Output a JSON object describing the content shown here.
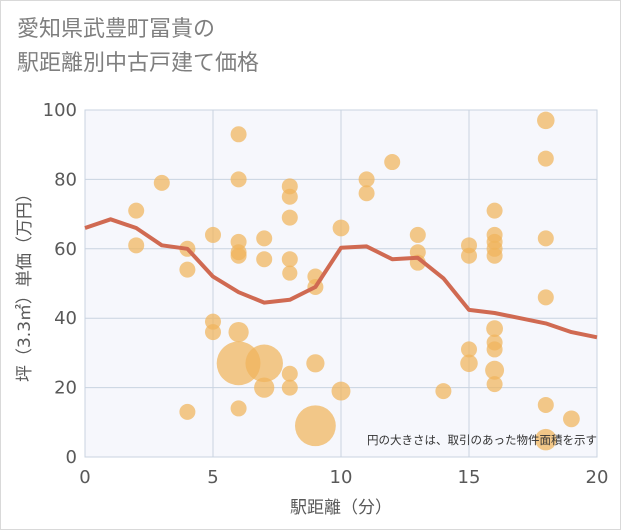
{
  "chart_data": {
    "type": "scatter",
    "title": "愛知県武豊町冨貴の\n駅距離別中古戸建て価格",
    "xlabel": "駅距離（分）",
    "ylabel": "坪（3.3㎡）単価（万円）",
    "xlim": [
      0,
      20
    ],
    "ylim": [
      0,
      100
    ],
    "xticks": [
      0,
      5,
      10,
      15,
      20
    ],
    "yticks": [
      0,
      20,
      40,
      60,
      80,
      100
    ],
    "grid": true,
    "annotation": "円の大きさは、取引のあった物件面積を示す",
    "colors": {
      "bubble": "#f0b45c",
      "line": "#d06a52",
      "plot_bg": "#f6f7fc",
      "grid": "#c9d3e0",
      "axis": "#595959"
    },
    "bubbles": [
      {
        "x": 2,
        "y": 71,
        "s": 1
      },
      {
        "x": 2,
        "y": 61,
        "s": 1
      },
      {
        "x": 3,
        "y": 79,
        "s": 1
      },
      {
        "x": 4,
        "y": 60,
        "s": 1
      },
      {
        "x": 4,
        "y": 54,
        "s": 1
      },
      {
        "x": 4,
        "y": 13,
        "s": 1
      },
      {
        "x": 5,
        "y": 64,
        "s": 1
      },
      {
        "x": 5,
        "y": 39,
        "s": 1
      },
      {
        "x": 5,
        "y": 36,
        "s": 1
      },
      {
        "x": 6,
        "y": 93,
        "s": 1
      },
      {
        "x": 6,
        "y": 80,
        "s": 1
      },
      {
        "x": 6,
        "y": 62,
        "s": 1
      },
      {
        "x": 6,
        "y": 59,
        "s": 1
      },
      {
        "x": 6,
        "y": 58,
        "s": 1
      },
      {
        "x": 6,
        "y": 36,
        "s": 1.6
      },
      {
        "x": 6,
        "y": 27,
        "s": 7.5
      },
      {
        "x": 6,
        "y": 14,
        "s": 1
      },
      {
        "x": 7,
        "y": 63,
        "s": 1
      },
      {
        "x": 7,
        "y": 57,
        "s": 1
      },
      {
        "x": 7,
        "y": 27,
        "s": 5.5
      },
      {
        "x": 7,
        "y": 20,
        "s": 1.6
      },
      {
        "x": 8,
        "y": 78,
        "s": 1
      },
      {
        "x": 8,
        "y": 75,
        "s": 1
      },
      {
        "x": 8,
        "y": 69,
        "s": 1
      },
      {
        "x": 8,
        "y": 57,
        "s": 1
      },
      {
        "x": 8,
        "y": 53,
        "s": 0.9
      },
      {
        "x": 8,
        "y": 24,
        "s": 1
      },
      {
        "x": 8,
        "y": 20,
        "s": 1
      },
      {
        "x": 9,
        "y": 52,
        "s": 1
      },
      {
        "x": 9,
        "y": 49,
        "s": 1
      },
      {
        "x": 9,
        "y": 27,
        "s": 1.3
      },
      {
        "x": 9,
        "y": 9,
        "s": 6.5
      },
      {
        "x": 10,
        "y": 66,
        "s": 1.1
      },
      {
        "x": 10,
        "y": 19,
        "s": 1.4
      },
      {
        "x": 11,
        "y": 80,
        "s": 1
      },
      {
        "x": 11,
        "y": 76,
        "s": 1
      },
      {
        "x": 12,
        "y": 85,
        "s": 1
      },
      {
        "x": 13,
        "y": 64,
        "s": 1
      },
      {
        "x": 13,
        "y": 59,
        "s": 1
      },
      {
        "x": 13,
        "y": 56,
        "s": 1
      },
      {
        "x": 14,
        "y": 19,
        "s": 1
      },
      {
        "x": 15,
        "y": 61,
        "s": 1
      },
      {
        "x": 15,
        "y": 58,
        "s": 1
      },
      {
        "x": 15,
        "y": 31,
        "s": 1
      },
      {
        "x": 15,
        "y": 27,
        "s": 1.2
      },
      {
        "x": 16,
        "y": 71,
        "s": 1
      },
      {
        "x": 16,
        "y": 64,
        "s": 1
      },
      {
        "x": 16,
        "y": 62,
        "s": 1
      },
      {
        "x": 16,
        "y": 60,
        "s": 1
      },
      {
        "x": 16,
        "y": 58,
        "s": 1
      },
      {
        "x": 16,
        "y": 37,
        "s": 1.1
      },
      {
        "x": 16,
        "y": 33,
        "s": 1
      },
      {
        "x": 16,
        "y": 31,
        "s": 1
      },
      {
        "x": 16,
        "y": 25,
        "s": 1.4
      },
      {
        "x": 16,
        "y": 21,
        "s": 1
      },
      {
        "x": 18,
        "y": 97,
        "s": 1.2
      },
      {
        "x": 18,
        "y": 86,
        "s": 1
      },
      {
        "x": 18,
        "y": 63,
        "s": 1
      },
      {
        "x": 18,
        "y": 46,
        "s": 1
      },
      {
        "x": 18,
        "y": 15,
        "s": 1
      },
      {
        "x": 18,
        "y": 5,
        "s": 1.8
      },
      {
        "x": 19,
        "y": 11,
        "s": 1.1
      }
    ],
    "trend": {
      "x": [
        0,
        1,
        2,
        3,
        4,
        5,
        6,
        7,
        8,
        9,
        10,
        11,
        12,
        13,
        14,
        15,
        16,
        17,
        18,
        19,
        20
      ],
      "y": [
        66,
        68.5,
        66,
        61,
        60,
        52,
        47.5,
        44.5,
        45.3,
        49,
        60.3,
        60.7,
        57,
        57.4,
        51.5,
        42.4,
        41.5,
        40,
        38.5,
        36,
        34.5
      ]
    }
  }
}
